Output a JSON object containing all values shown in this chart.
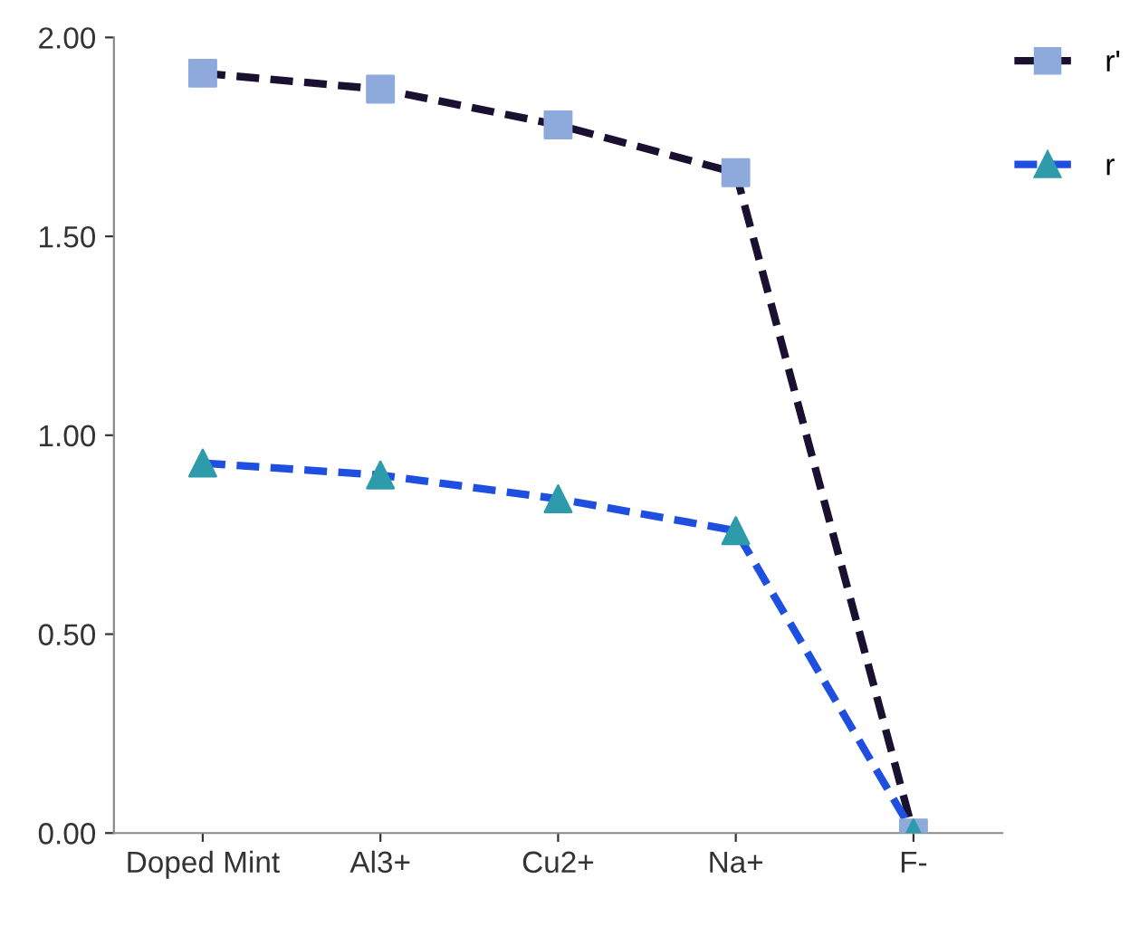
{
  "chart_data": {
    "type": "line",
    "categories": [
      "Doped Mint",
      "Al3+",
      "Cu2+",
      "Na+",
      "F-"
    ],
    "series": [
      {
        "name": "r'",
        "color": "#1a1030",
        "colors": [
          "#8ea9db",
          "#8ea9db",
          "#8ea9db",
          "#8ea9db",
          "#8ea9db"
        ],
        "marker": "square",
        "values": [
          1.91,
          1.87,
          1.78,
          1.66,
          0.0
        ]
      },
      {
        "name": "r",
        "color": "#1f4fe0",
        "colors": [
          "#2e9bab",
          "#2e9bab",
          "#2e9bab",
          "#2e9bab",
          "#2e9bab"
        ],
        "marker": "triangle",
        "values": [
          0.93,
          0.9,
          0.84,
          0.76,
          0.0
        ]
      }
    ],
    "ylim": [
      0,
      2
    ],
    "yticks": [
      {
        "value": 0,
        "label": "0.00"
      },
      {
        "value": 0.5,
        "label": "0.50"
      },
      {
        "value": 1,
        "label": "1.00"
      },
      {
        "value": 1.5,
        "label": "1.50"
      },
      {
        "value": 2,
        "label": "2.00"
      }
    ],
    "line_style": "dashed",
    "legend": "top right",
    "grid": false
  }
}
